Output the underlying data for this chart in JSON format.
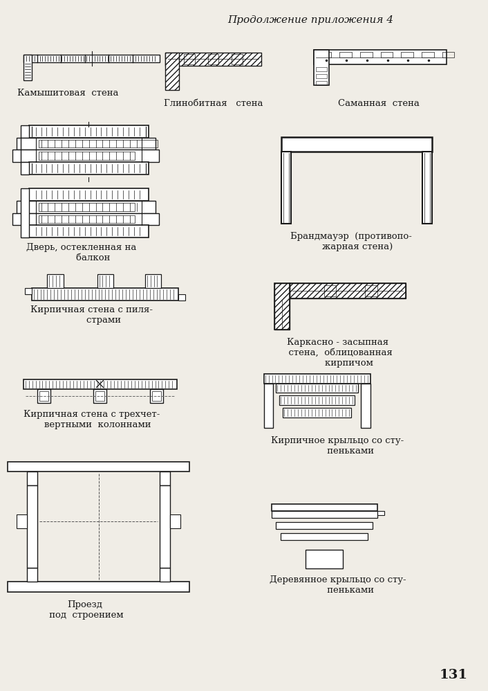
{
  "title": "Продолжение приложения 4",
  "page_number": "131",
  "bg_color": "#f0ede6",
  "line_color": "#1a1a1a",
  "text_color": "#1a1a1a",
  "label_kamysh": "Камышитовая  стена",
  "label_glinob": "Глинобитная   стена",
  "label_saman": "Саманная  стена",
  "label_dver": "Дверь, остекленная на\n        балкон",
  "label_brand": "Брандмауэр  (противопо-\n    жарная стена)",
  "label_kirp_pil": "Кирпичная стена с пиля-\n        страми",
  "label_kark": "Каркасно - засыпная\n  стена,  облицованная\n        кирпичом",
  "label_kirp_col": "Кирпичная стена с трехчет-\n    вертными  колоннами",
  "label_kirp_kr": "Кирпичное крыльцо со сту-\n         пеньками",
  "label_proezd": "Проезд\n под  строением",
  "label_der_kr": "Деревянное крыльцо со сту-\n         пеньками"
}
